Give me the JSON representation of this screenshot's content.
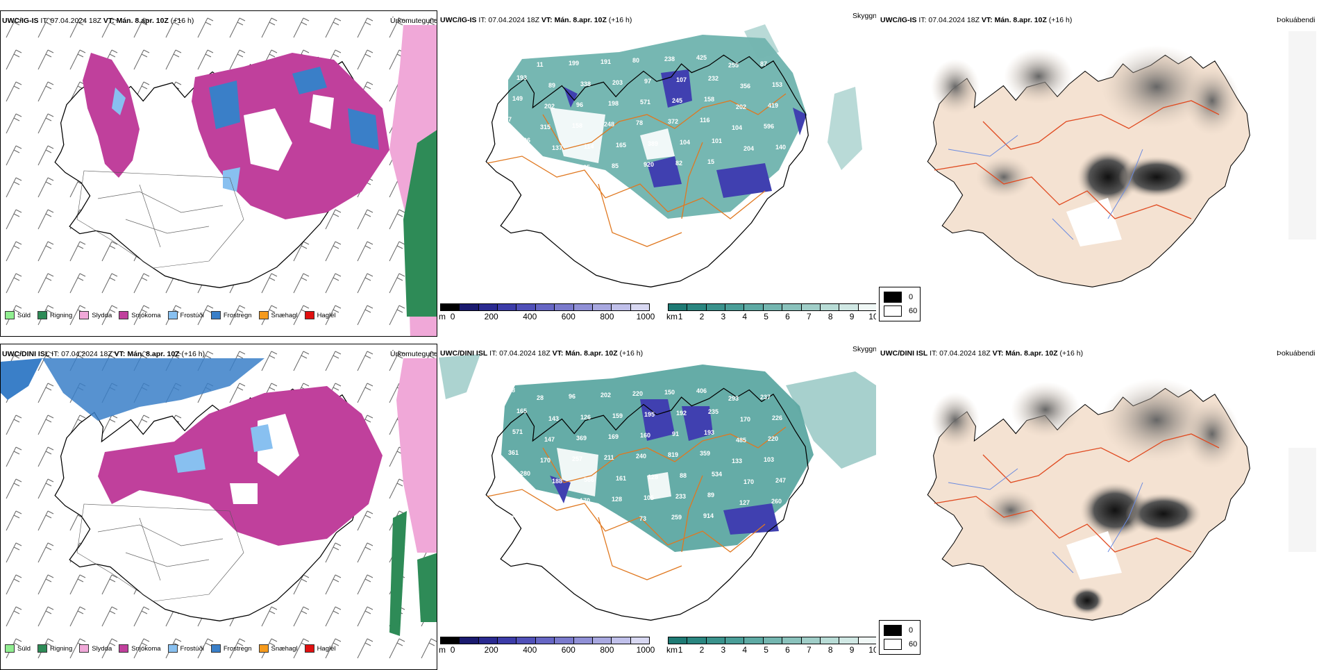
{
  "rows": [
    {
      "model": "UWC/IG-IS",
      "it_label": "IT: 07.04.2024 18Z",
      "vt_label": "VT: Mán. 8.apr. 10Z",
      "lead": "(+16 h)"
    },
    {
      "model": "UWC/DINI ISL",
      "it_label": "IT: 07.04.2024 18Z",
      "vt_label": "VT: Mán. 8.apr. 10Z",
      "lead": "(+16 h)"
    }
  ],
  "panel_labels": {
    "precip": "Úrkomutegund",
    "cloud": "Skyggni",
    "fog": "Þokuábendi"
  },
  "precip_legend": [
    {
      "label": "Súld",
      "color": "#90ee90"
    },
    {
      "label": "Rigning",
      "color": "#2e8b57"
    },
    {
      "label": "Slydda",
      "color": "#f0a8d8"
    },
    {
      "label": "Snjókoma",
      "color": "#c0409c"
    },
    {
      "label": "Frostúði",
      "color": "#88c0f0"
    },
    {
      "label": "Frostregn",
      "color": "#3a7fc8"
    },
    {
      "label": "Snæhagl",
      "color": "#f59a1c"
    },
    {
      "label": "Haglél",
      "color": "#e01010"
    }
  ],
  "ceiling_bar": {
    "unit": "m",
    "ticks": [
      "0",
      "200",
      "400",
      "600",
      "800",
      "1000"
    ],
    "colors": [
      "#000000",
      "#1a1a6e",
      "#2a2a90",
      "#3c3ca8",
      "#5050b8",
      "#6666c4",
      "#7a7acc",
      "#9090d6",
      "#a8a8e0",
      "#c0c0ea",
      "#d8d8f2"
    ]
  },
  "vis_bar": {
    "unit": "km",
    "ticks": [
      "1",
      "2",
      "3",
      "4",
      "5",
      "6",
      "7",
      "8",
      "9",
      "10"
    ],
    "colors": [
      "#1e7a74",
      "#2a8680",
      "#3a928c",
      "#4a9e98",
      "#5eaaa4",
      "#74b6b0",
      "#8ac2bc",
      "#a0cec8",
      "#b8dcd6",
      "#d0e8e4",
      "#f0f8f6"
    ]
  },
  "fog_legend": [
    {
      "value": "0",
      "color": "#000000"
    },
    {
      "value": "60",
      "color": "#ffffff"
    }
  ],
  "ceiling_values_top": [
    "179",
    "11",
    "199",
    "191",
    "80",
    "238",
    "425",
    "255",
    "87",
    "193",
    "89",
    "338",
    "203",
    "97",
    "107",
    "232",
    "356",
    "153",
    "149",
    "202",
    "96",
    "198",
    "571",
    "245",
    "158",
    "202",
    "419",
    "7",
    "315",
    "158",
    "248",
    "78",
    "372",
    "116",
    "104",
    "596",
    "106",
    "137",
    "114",
    "165",
    "389",
    "104",
    "101",
    "204",
    "140",
    "230",
    "192",
    "125",
    "85",
    "920",
    "82",
    "15"
  ],
  "ceiling_values_bottom": [
    "418",
    "28",
    "96",
    "202",
    "220",
    "150",
    "406",
    "293",
    "237",
    "165",
    "143",
    "126",
    "159",
    "195",
    "192",
    "235",
    "170",
    "226",
    "571",
    "147",
    "369",
    "169",
    "160",
    "91",
    "193",
    "485",
    "220",
    "361",
    "170",
    "257",
    "211",
    "240",
    "819",
    "359",
    "133",
    "103",
    "280",
    "188",
    "566",
    "161",
    "128",
    "88",
    "534",
    "170",
    "247",
    "198",
    "121",
    "170",
    "128",
    "105",
    "233",
    "89",
    "127",
    "260",
    "252",
    "205",
    "188",
    "155",
    "73",
    "259",
    "914"
  ]
}
